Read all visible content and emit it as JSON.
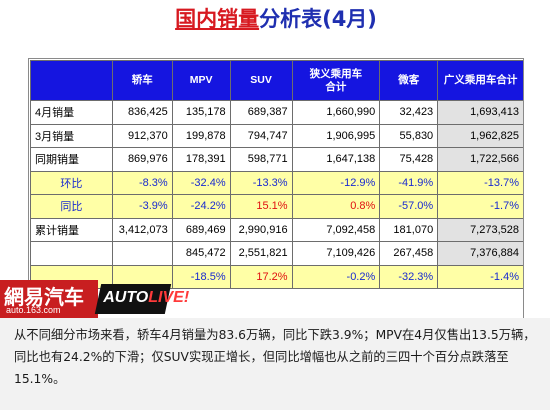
{
  "title": {
    "red_part": "国内销量",
    "blue_part": "分析表(4月)"
  },
  "table": {
    "headers": [
      "",
      "轿车",
      "MPV",
      "SUV",
      "狭义乘用车\n合计",
      "微客",
      "广义乘用车合计"
    ],
    "rows": [
      {
        "label": "4月销量",
        "cells": [
          "836,425",
          "135,178",
          "689,387",
          "1,660,990",
          "32,423",
          "1,693,413"
        ],
        "ratio": false
      },
      {
        "label": "3月销量",
        "cells": [
          "912,370",
          "199,878",
          "794,747",
          "1,906,995",
          "55,830",
          "1,962,825"
        ],
        "ratio": false
      },
      {
        "label": "同期销量",
        "cells": [
          "869,976",
          "178,391",
          "598,771",
          "1,647,138",
          "75,428",
          "1,722,566"
        ],
        "ratio": false
      },
      {
        "label": "环比",
        "cells": [
          "-8.3%",
          "-32.4%",
          "-13.3%",
          "-12.9%",
          "-41.9%",
          "-13.7%"
        ],
        "ratio": true,
        "red": []
      },
      {
        "label": "同比",
        "cells": [
          "-3.9%",
          "-24.2%",
          "15.1%",
          "0.8%",
          "-57.0%",
          "-1.7%"
        ],
        "ratio": true,
        "red": [
          2,
          3
        ]
      },
      {
        "label": "累计销量",
        "cells": [
          "3,412,073",
          "689,469",
          "2,990,916",
          "7,092,458",
          "181,070",
          "7,273,528"
        ],
        "ratio": false
      },
      {
        "label": "",
        "cells": [
          "",
          "845,472",
          "2,551,821",
          "7,109,426",
          "267,458",
          "7,376,884"
        ],
        "ratio": false
      },
      {
        "label": "",
        "cells": [
          "",
          "-18.5%",
          "17.2%",
          "-0.2%",
          "-32.3%",
          "-1.4%"
        ],
        "ratio": true,
        "red": [
          2
        ]
      }
    ]
  },
  "logo": {
    "brand_text": "網易汽车",
    "url_text": "auto.163.com",
    "auto_text": "AUTO",
    "live_text": "LIVE!"
  },
  "caption": "从不同细分市场来看，轿车4月销量为83.6万辆，同比下跌3.9%；MPV在4月仅售出13.5万辆，同比也有24.2%的下滑；仅SUV实现正增长，但同比增幅也从之前的三四十个百分点跌落至15.1%。",
  "colors": {
    "header_bg": "#1515e0",
    "ratio_row_bg": "#ffffa6",
    "ratio_text": "#1a2bd0",
    "highlight_red": "#e01010",
    "title_red": "#d71920",
    "title_blue": "#1f2fb0"
  }
}
